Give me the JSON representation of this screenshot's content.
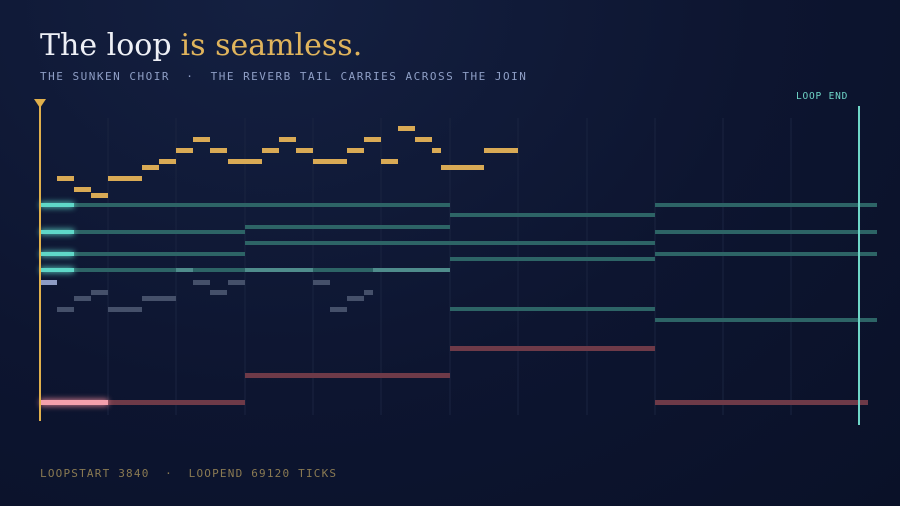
{
  "header": {
    "title": "The loop",
    "title_accent": "is seamless.",
    "subtitle": "THE SUNKEN CHOIR  ·  THE REVERB TAIL CARRIES ACROSS THE JOIN"
  },
  "marker": {
    "label": "LOOP END"
  },
  "footer": {
    "text": "LOOPSTART 3840  ·  LOOPEND 69120 TICKS"
  }
}
